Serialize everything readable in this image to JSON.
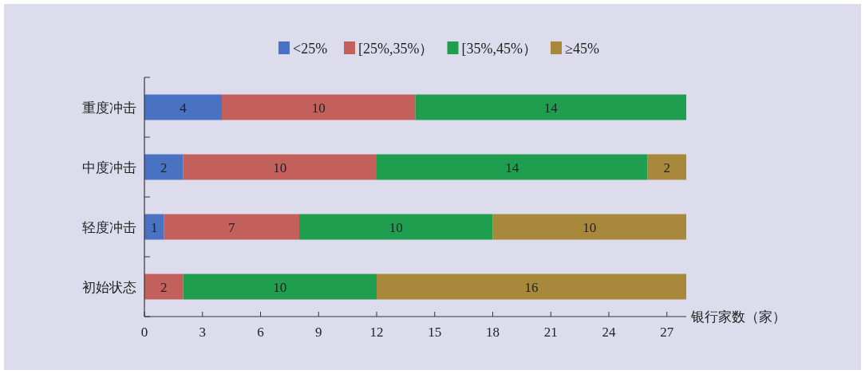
{
  "chart_data": {
    "type": "bar",
    "orientation": "horizontal",
    "stacked": true,
    "data_labels": true,
    "legend": "top",
    "xlabel": "银行家数（家）",
    "categories": [
      "重度冲击",
      "中度冲击",
      "轻度冲击",
      "初始状态"
    ],
    "series": [
      {
        "name": "<25%",
        "color": "#4a72c2",
        "values": [
          4,
          2,
          1,
          null
        ]
      },
      {
        "name": "[25%,35%）",
        "color": "#c4605c",
        "values": [
          10,
          10,
          7,
          2
        ]
      },
      {
        "name": "[35%,45%）",
        "color": "#1e9e4e",
        "values": [
          14,
          14,
          10,
          10
        ]
      },
      {
        "name": "≥45%",
        "color": "#a8883a",
        "values": [
          null,
          2,
          10,
          16
        ]
      }
    ],
    "xlim": [
      0,
      28
    ],
    "xticks": [
      0,
      3,
      6,
      9,
      12,
      15,
      18,
      21,
      24,
      27
    ]
  }
}
